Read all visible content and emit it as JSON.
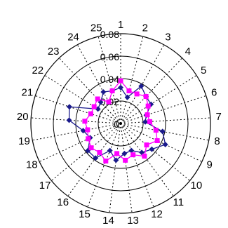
{
  "chart_data": {
    "type": "radar",
    "categories": [
      "1",
      "2",
      "3",
      "4",
      "5",
      "6",
      "7",
      "8",
      "9",
      "10",
      "11",
      "12",
      "13",
      "14",
      "15",
      "16",
      "17",
      "18",
      "19",
      "20",
      "21",
      "22",
      "23",
      "24",
      "25"
    ],
    "radial_ticks": [
      "0",
      "0.02",
      "0.04",
      "0.06",
      "0.08"
    ],
    "rlim": [
      0,
      0.08
    ],
    "grid": true,
    "series": [
      {
        "color": "#1a1a8c",
        "marker": "diamond",
        "values": [
          0.032,
          0.024,
          0.038,
          0.033,
          0.032,
          0.024,
          0.022,
          0.038,
          0.044,
          0.036,
          0.032,
          0.026,
          0.027,
          0.033,
          0.026,
          0.038,
          0.038,
          0.03,
          0.034,
          0.046,
          0.048,
          0.024,
          0.026,
          0.032,
          0.03
        ]
      },
      {
        "color": "#ff00ff",
        "marker": "square",
        "values": [
          0.038,
          0.03,
          0.03,
          0.033,
          0.029,
          0.025,
          0.026,
          0.032,
          0.036,
          0.03,
          0.036,
          0.03,
          0.033,
          0.027,
          0.036,
          0.032,
          0.034,
          0.032,
          0.03,
          0.032,
          0.028,
          0.028,
          0.03,
          0.022,
          0.03
        ]
      }
    ]
  }
}
